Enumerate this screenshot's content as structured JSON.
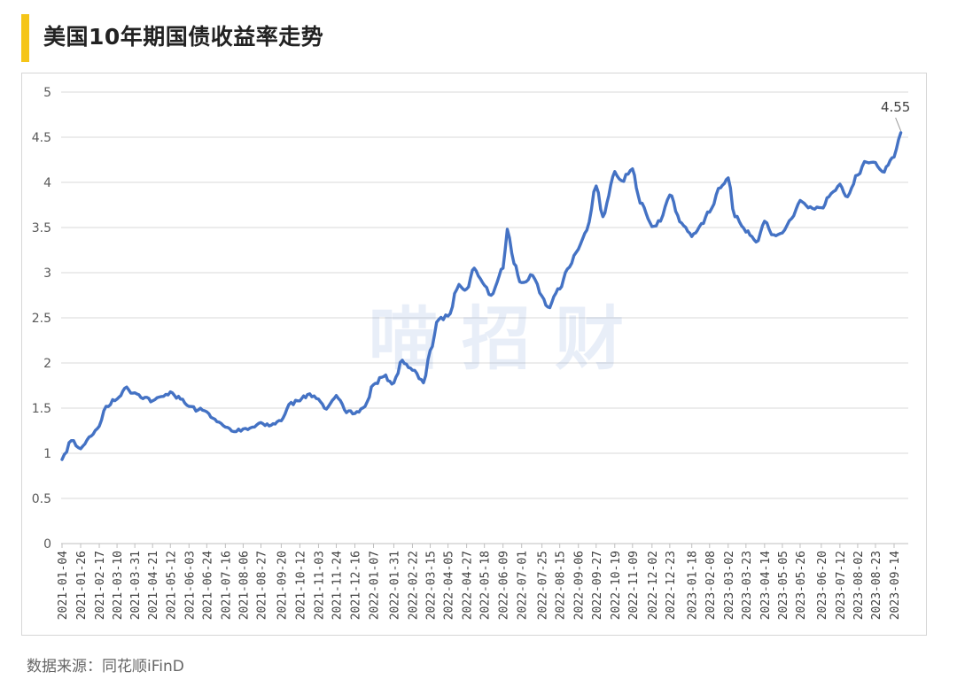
{
  "title": "美国10年期国债收益率走势",
  "source": "数据来源：同花顺iFinD",
  "watermark": "喵 招 财",
  "colors": {
    "line": "#4472c4",
    "accent": "#f5c518",
    "grid": "#d9d9d9"
  },
  "chart_data": {
    "type": "line",
    "title": "美国10年期国债收益率走势",
    "xlabel": "",
    "ylabel": "",
    "ylim": [
      0,
      5
    ],
    "yticks": [
      "0",
      "0.5",
      "1",
      "1.5",
      "2",
      "2.5",
      "3",
      "3.5",
      "4",
      "4.5",
      "5"
    ],
    "xticks": [
      "2021-01-04",
      "2021-01-26",
      "2021-02-17",
      "2021-03-10",
      "2021-03-31",
      "2021-04-21",
      "2021-05-12",
      "2021-06-03",
      "2021-06-24",
      "2021-07-16",
      "2021-08-06",
      "2021-08-27",
      "2021-09-20",
      "2021-10-12",
      "2021-11-03",
      "2021-11-24",
      "2021-12-16",
      "2022-01-07",
      "2022-01-31",
      "2022-02-22",
      "2022-03-15",
      "2022-04-05",
      "2022-04-27",
      "2022-05-18",
      "2022-06-09",
      "2022-07-01",
      "2022-07-25",
      "2022-08-15",
      "2022-09-06",
      "2022-09-27",
      "2022-10-19",
      "2022-11-09",
      "2022-12-02",
      "2022-12-23",
      "2023-01-18",
      "2023-02-08",
      "2023-03-02",
      "2023-03-23",
      "2023-04-14",
      "2023-05-05",
      "2023-05-26",
      "2023-06-20",
      "2023-07-12",
      "2023-08-02",
      "2023-08-23",
      "2023-09-14"
    ],
    "grid": true,
    "legend": "none",
    "annotation": {
      "text": "4.55",
      "x": "2023-09-22",
      "y": 4.55
    },
    "series": [
      {
        "x": [
          "2021-01-04",
          "2021-01-15",
          "2021-01-26",
          "2021-02-05",
          "2021-02-17",
          "2021-02-25",
          "2021-03-10",
          "2021-03-19",
          "2021-03-31",
          "2021-04-12",
          "2021-04-21",
          "2021-05-04",
          "2021-05-12",
          "2021-05-24",
          "2021-06-03",
          "2021-06-14",
          "2021-06-24",
          "2021-07-06",
          "2021-07-16",
          "2021-07-26",
          "2021-08-06",
          "2021-08-17",
          "2021-08-27",
          "2021-09-08",
          "2021-09-20",
          "2021-09-29",
          "2021-10-12",
          "2021-10-21",
          "2021-11-03",
          "2021-11-10",
          "2021-11-24",
          "2021-12-06",
          "2021-12-16",
          "2021-12-28",
          "2022-01-07",
          "2022-01-19",
          "2022-01-31",
          "2022-02-10",
          "2022-02-22",
          "2022-03-07",
          "2022-03-15",
          "2022-03-25",
          "2022-04-05",
          "2022-04-18",
          "2022-04-27",
          "2022-05-06",
          "2022-05-18",
          "2022-05-26",
          "2022-06-09",
          "2022-06-14",
          "2022-06-22",
          "2022-07-01",
          "2022-07-14",
          "2022-07-25",
          "2022-08-01",
          "2022-08-15",
          "2022-08-24",
          "2022-09-06",
          "2022-09-16",
          "2022-09-27",
          "2022-10-05",
          "2022-10-19",
          "2022-10-27",
          "2022-11-09",
          "2022-11-18",
          "2022-12-02",
          "2022-12-12",
          "2022-12-23",
          "2023-01-06",
          "2023-01-18",
          "2023-01-27",
          "2023-02-08",
          "2023-02-21",
          "2023-03-02",
          "2023-03-10",
          "2023-03-23",
          "2023-04-04",
          "2023-04-14",
          "2023-04-25",
          "2023-05-05",
          "2023-05-16",
          "2023-05-26",
          "2023-06-07",
          "2023-06-20",
          "2023-06-29",
          "2023-07-12",
          "2023-07-21",
          "2023-08-02",
          "2023-08-10",
          "2023-08-23",
          "2023-08-31",
          "2023-09-14",
          "2023-09-22"
        ],
        "values": [
          0.93,
          1.14,
          1.05,
          1.18,
          1.3,
          1.52,
          1.6,
          1.72,
          1.67,
          1.62,
          1.58,
          1.63,
          1.68,
          1.6,
          1.52,
          1.48,
          1.46,
          1.35,
          1.29,
          1.24,
          1.27,
          1.29,
          1.34,
          1.31,
          1.36,
          1.54,
          1.58,
          1.65,
          1.6,
          1.5,
          1.64,
          1.45,
          1.44,
          1.52,
          1.76,
          1.85,
          1.78,
          2.03,
          1.92,
          1.78,
          2.14,
          2.48,
          2.52,
          2.87,
          2.82,
          3.05,
          2.86,
          2.75,
          3.05,
          3.48,
          3.1,
          2.89,
          2.97,
          2.74,
          2.62,
          2.82,
          3.04,
          3.26,
          3.47,
          3.96,
          3.62,
          4.12,
          4.02,
          4.15,
          3.77,
          3.51,
          3.57,
          3.86,
          3.55,
          3.4,
          3.51,
          3.67,
          3.94,
          4.05,
          3.62,
          3.45,
          3.34,
          3.57,
          3.42,
          3.44,
          3.6,
          3.8,
          3.73,
          3.72,
          3.84,
          3.98,
          3.84,
          4.08,
          4.23,
          4.22,
          4.12,
          4.28,
          4.55
        ]
      }
    ]
  }
}
